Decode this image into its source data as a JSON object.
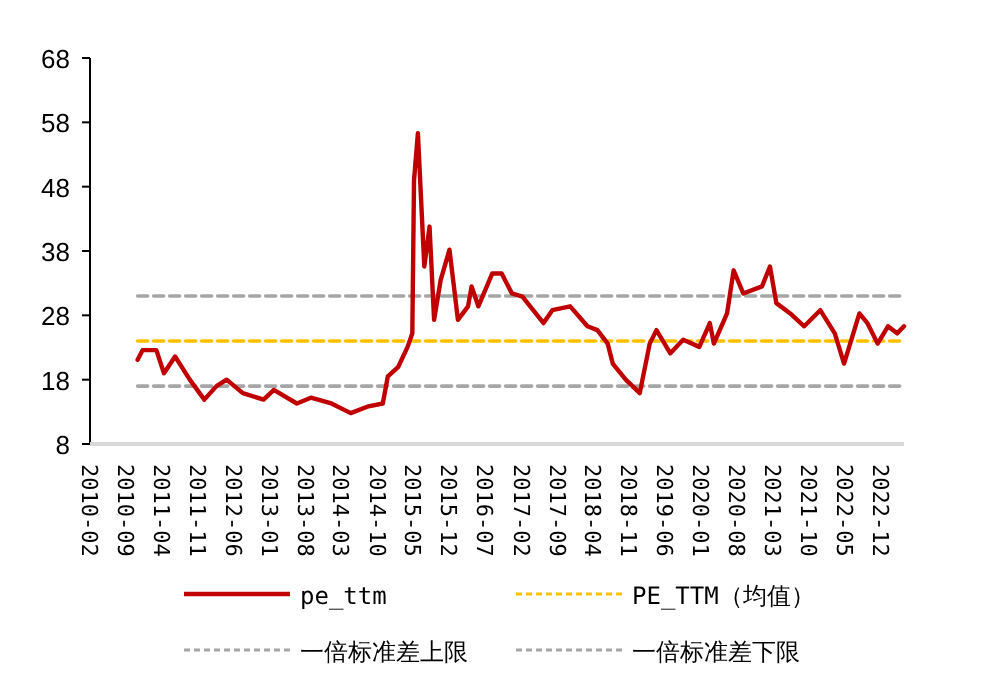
{
  "chart_data": {
    "type": "line",
    "xlim": [
      "2010-02",
      "2023-04-15"
    ],
    "ylim": [
      8,
      68
    ],
    "yticks": [
      8,
      18,
      28,
      38,
      48,
      58,
      68
    ],
    "xticks": [
      "2010-02",
      "2010-09",
      "2011-04",
      "2011-11",
      "2012-06",
      "2013-01",
      "2013-08",
      "2014-03",
      "2014-10",
      "2015-05",
      "2015-12",
      "2016-07",
      "2017-02",
      "2017-09",
      "2018-04",
      "2018-11",
      "2019-06",
      "2020-01",
      "2020-08",
      "2021-03",
      "2021-10",
      "2022-05",
      "2022-12"
    ],
    "legend": "bottom",
    "series": [
      {
        "name": "pe_ttm",
        "color": "#c00000",
        "line_style": "solid",
        "x": [
          "2010-11-10",
          "2010-12-10",
          "2011-03-01",
          "2011-04-15",
          "2011-06-20",
          "2011-09-15",
          "2011-12-10",
          "2012-02-20",
          "2012-04-20",
          "2012-07-25",
          "2012-11-25",
          "2013-01-25",
          "2013-06-10",
          "2013-09-01",
          "2014-01-01",
          "2014-04-25",
          "2014-08-01",
          "2014-11-01",
          "2014-12-01",
          "2015-02-01",
          "2015-03-28",
          "2015-04-25",
          "2015-05-05",
          "2015-05-28",
          "2015-07-05",
          "2015-08-05",
          "2015-09-01",
          "2015-10-10",
          "2015-12-01",
          "2016-01-20",
          "2016-03-20",
          "2016-04-10",
          "2016-05-20",
          "2016-08-10",
          "2016-10-05",
          "2016-12-05",
          "2017-02-05",
          "2017-06-10",
          "2017-08-01",
          "2017-11-15",
          "2018-02-25",
          "2018-04-25",
          "2018-06-25",
          "2018-07-25",
          "2018-10-10",
          "2019-01-01",
          "2019-03-01",
          "2019-04-10",
          "2019-07-01",
          "2019-09-15",
          "2019-12-20",
          "2020-02-20",
          "2020-03-15",
          "2020-06-01",
          "2020-07-10",
          "2020-09-05",
          "2020-12-25",
          "2021-02-10",
          "2021-03-20",
          "2021-06-10",
          "2021-09-01",
          "2021-12-05",
          "2022-03-01",
          "2022-04-25",
          "2022-07-25",
          "2022-09-10",
          "2022-11-10",
          "2023-01-10",
          "2023-03-05",
          "2023-04-15"
        ],
        "values": [
          21.1,
          22.6,
          22.6,
          19.0,
          21.6,
          18.0,
          14.9,
          17.0,
          18.0,
          15.9,
          14.9,
          16.4,
          14.3,
          15.2,
          14.3,
          12.8,
          13.8,
          14.3,
          18.5,
          20.0,
          23.1,
          25.2,
          49.0,
          56.3,
          35.6,
          41.8,
          27.3,
          33.5,
          38.2,
          27.3,
          29.4,
          32.5,
          29.4,
          34.5,
          34.5,
          31.4,
          30.9,
          26.8,
          28.8,
          29.4,
          26.3,
          25.7,
          23.6,
          20.5,
          18.0,
          15.9,
          23.6,
          25.7,
          22.1,
          24.2,
          23.1,
          26.8,
          23.6,
          28.3,
          35.0,
          31.4,
          32.5,
          35.6,
          29.9,
          28.3,
          26.3,
          28.8,
          25.2,
          20.5,
          28.3,
          26.8,
          23.6,
          26.3,
          25.2,
          26.3
        ]
      },
      {
        "name": "PE_TTM（均值）",
        "color": "#ffc000",
        "line_style": "dashed",
        "x": [
          "2010-11-10",
          "2023-04-15"
        ],
        "values": [
          24,
          24
        ]
      },
      {
        "name": "一倍标准差上限",
        "color": "#a6a6a6",
        "line_style": "dashed",
        "x": [
          "2010-11-10",
          "2023-04-15"
        ],
        "values": [
          31,
          31
        ]
      },
      {
        "name": "一倍标准差下限",
        "color": "#a6a6a6",
        "line_style": "dashed",
        "x": [
          "2010-11-10",
          "2023-04-15"
        ],
        "values": [
          17,
          17
        ]
      }
    ]
  }
}
